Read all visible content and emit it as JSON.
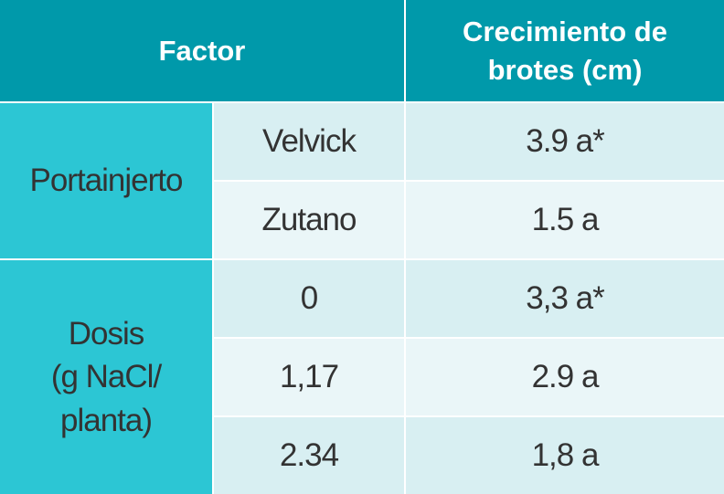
{
  "table": {
    "header": [
      "Factor",
      "Crecimiento de brotes (cm)"
    ],
    "groups": [
      {
        "label": [
          "Portainjerto"
        ],
        "rows": [
          [
            "Velvick",
            "3.9 a*"
          ],
          [
            "Zutano",
            "1.5 a"
          ]
        ]
      },
      {
        "label": [
          "Dosis",
          "(g NaCl/",
          "planta)"
        ],
        "rows": [
          [
            "0",
            "3,3 a*"
          ],
          [
            "1,17",
            "2.9 a"
          ],
          [
            "2.34",
            "1,8 a"
          ]
        ]
      }
    ]
  }
}
